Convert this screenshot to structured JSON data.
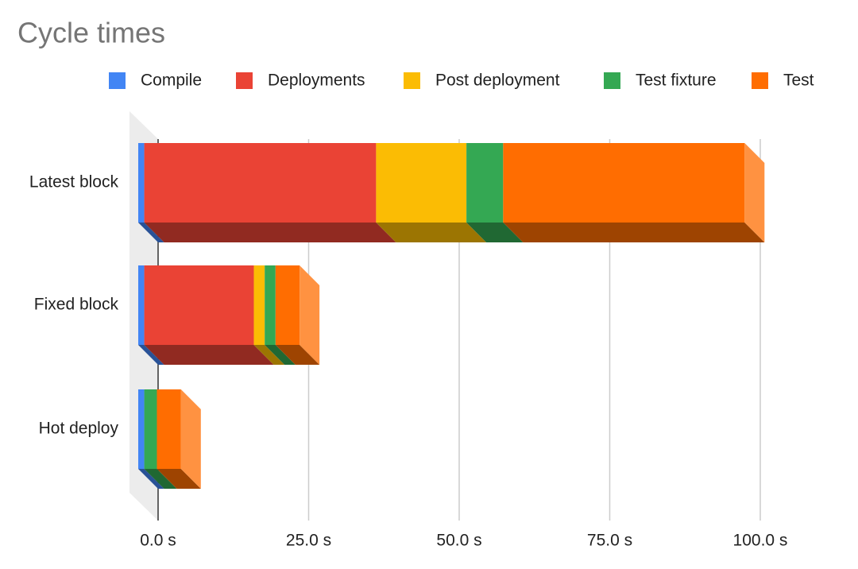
{
  "chart_data": {
    "type": "bar3d-stacked-horizontal",
    "title": "Cycle times",
    "categories": [
      "Latest block",
      "Fixed block",
      "Hot deploy"
    ],
    "series": [
      {
        "name": "Compile",
        "color": "#4285f4",
        "values": [
          1.0,
          1.0,
          1.0
        ]
      },
      {
        "name": "Deployments",
        "color": "#ea4335",
        "values": [
          38.5,
          18.2,
          0
        ]
      },
      {
        "name": "Post deployment",
        "color": "#fbbc04",
        "values": [
          15.0,
          1.8,
          0
        ]
      },
      {
        "name": "Test fixture",
        "color": "#34a853",
        "values": [
          6.1,
          1.8,
          2.1
        ]
      },
      {
        "name": "Test",
        "color": "#ff6d01",
        "values": [
          40.1,
          4.0,
          4.0
        ]
      }
    ],
    "xlim": [
      0,
      100
    ],
    "xticks": [
      {
        "value": 0,
        "label": "0.0 s"
      },
      {
        "value": 25,
        "label": "25.0 s"
      },
      {
        "value": 50,
        "label": "50.0 s"
      },
      {
        "value": 75,
        "label": "75.0 s"
      },
      {
        "value": 100,
        "label": "100.0 s"
      }
    ],
    "grid": true,
    "legend": "top"
  }
}
